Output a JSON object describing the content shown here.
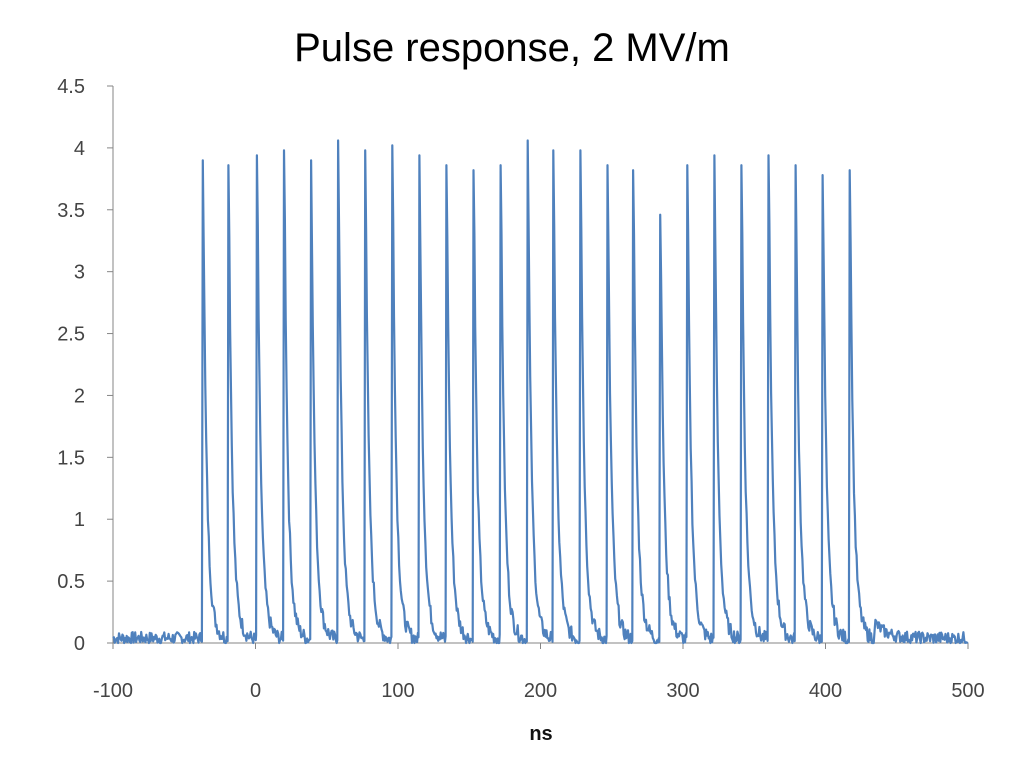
{
  "chart_data": {
    "type": "line",
    "title": "Pulse response, 2 MV/m",
    "xlabel": "ns",
    "ylabel": "",
    "xlim": [
      -100,
      500
    ],
    "ylim": [
      0,
      4.5
    ],
    "xticks": [
      -100,
      0,
      100,
      200,
      300,
      400,
      500
    ],
    "yticks": [
      0,
      0.5,
      1,
      1.5,
      2,
      2.5,
      3,
      3.5,
      4,
      4.5
    ],
    "grid": false,
    "legend": "none",
    "series_color": "#4f81bd",
    "series": [
      {
        "pulse_times": [
          -37,
          -19,
          1,
          20,
          39,
          58,
          77,
          96,
          115,
          134,
          153,
          172,
          191,
          209,
          228,
          247,
          265,
          284,
          303,
          322,
          341,
          360,
          379,
          398,
          417
        ],
        "pulse_peaks": [
          3.9,
          3.86,
          3.94,
          3.98,
          3.9,
          4.06,
          3.98,
          4.02,
          3.94,
          3.86,
          3.82,
          3.86,
          4.06,
          3.98,
          3.98,
          3.86,
          3.82,
          3.46,
          3.86,
          3.94,
          3.86,
          3.94,
          3.86,
          3.78,
          3.82
        ],
        "baseline": 0.04
      }
    ]
  }
}
